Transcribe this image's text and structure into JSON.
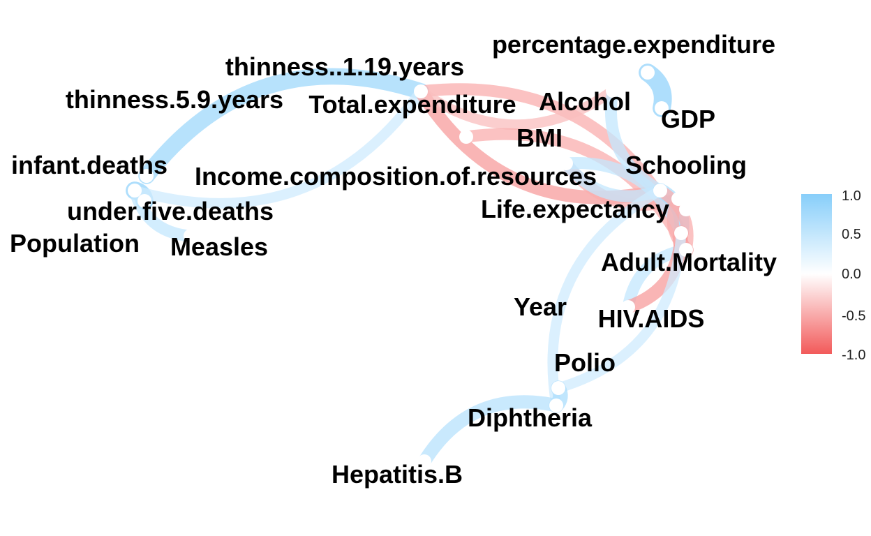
{
  "diagram": {
    "type": "correlation-network",
    "nodes": [
      {
        "id": "percentage.expenditure",
        "label": "percentage.expenditure"
      },
      {
        "id": "thinness..1.19.years",
        "label": "thinness..1.19.years"
      },
      {
        "id": "thinness.5.9.years",
        "label": "thinness.5.9.years"
      },
      {
        "id": "Total.expenditure",
        "label": "Total.expenditure"
      },
      {
        "id": "Alcohol",
        "label": "Alcohol"
      },
      {
        "id": "GDP",
        "label": "GDP"
      },
      {
        "id": "BMI",
        "label": "BMI"
      },
      {
        "id": "infant.deaths",
        "label": "infant.deaths"
      },
      {
        "id": "Schooling",
        "label": "Schooling"
      },
      {
        "id": "Income.composition.of.resources",
        "label": "Income.composition.of.resources"
      },
      {
        "id": "under.five.deaths",
        "label": "under.five.deaths"
      },
      {
        "id": "Life.expectancy",
        "label": "Life.expectancy"
      },
      {
        "id": "Population",
        "label": "Population"
      },
      {
        "id": "Measles",
        "label": "Measles"
      },
      {
        "id": "Adult.Mortality",
        "label": "Adult.Mortality"
      },
      {
        "id": "Year",
        "label": "Year"
      },
      {
        "id": "HIV.AIDS",
        "label": "HIV.AIDS"
      },
      {
        "id": "Polio",
        "label": "Polio"
      },
      {
        "id": "Diphtheria",
        "label": "Diphtheria"
      },
      {
        "id": "Hepatitis.B",
        "label": "Hepatitis.B"
      }
    ],
    "edges": [
      {
        "from": "thinness..1.19.years",
        "to": "thinness.5.9.years",
        "r": 0.8
      },
      {
        "from": "infant.deaths",
        "to": "under.five.deaths",
        "r": 0.9
      },
      {
        "from": "infant.deaths",
        "to": "Measles",
        "r": 0.5
      },
      {
        "from": "thinness..1.19.years",
        "to": "infant.deaths",
        "r": 0.4
      },
      {
        "from": "thinness..1.19.years",
        "to": "Schooling",
        "r": -0.6
      },
      {
        "from": "thinness..1.19.years",
        "to": "Life.expectancy",
        "r": -0.5
      },
      {
        "from": "thinness..1.19.years",
        "to": "Alcohol",
        "r": -0.4
      },
      {
        "from": "Total.expenditure",
        "to": "Adult.Mortality",
        "r": -0.5
      },
      {
        "from": "BMI",
        "to": "Income.composition.of.resources",
        "r": -0.5
      },
      {
        "from": "BMI",
        "to": "Life.expectancy",
        "r": 0.5
      },
      {
        "from": "BMI",
        "to": "Schooling",
        "r": 0.5
      },
      {
        "from": "percentage.expenditure",
        "to": "GDP",
        "r": 0.9
      },
      {
        "from": "Alcohol",
        "to": "Schooling",
        "r": 0.5
      },
      {
        "from": "Schooling",
        "to": "Life.expectancy",
        "r": 0.7
      },
      {
        "from": "Life.expectancy",
        "to": "Adult.Mortality",
        "r": -0.7
      },
      {
        "from": "Schooling",
        "to": "Adult.Mortality",
        "r": -0.5
      },
      {
        "from": "Adult.Mortality",
        "to": "HIV.AIDS",
        "r": 0.5
      },
      {
        "from": "Life.expectancy",
        "to": "HIV.AIDS",
        "r": -0.6
      },
      {
        "from": "Income.composition.of.resources",
        "to": "Adult.Mortality",
        "r": -0.5
      },
      {
        "from": "Life.expectancy",
        "to": "Polio",
        "r": 0.4
      },
      {
        "from": "Schooling",
        "to": "Diphtheria",
        "r": 0.4
      },
      {
        "from": "Polio",
        "to": "Diphtheria",
        "r": 0.7
      },
      {
        "from": "Diphtheria",
        "to": "Hepatitis.B",
        "r": 0.6
      }
    ]
  },
  "legend": {
    "ticks": [
      "1.0",
      "0.5",
      "0.0",
      "-0.5",
      "-1.0"
    ],
    "color_high": "#87CEFA",
    "color_mid": "#FFFFFF",
    "color_low": "#F25A5A"
  }
}
